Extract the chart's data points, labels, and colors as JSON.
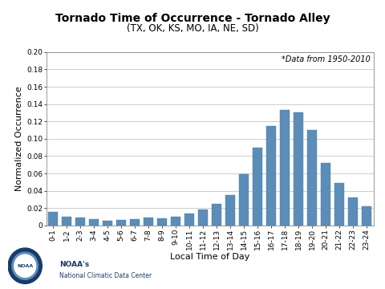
{
  "title": "Tornado Time of Occurrence - Tornado Alley",
  "subtitle": "(TX, OK, KS, MO, IA, NE, SD)",
  "xlabel": "Local Time of Day",
  "ylabel": "Normalized Occurrence",
  "annotation": "*Data from 1950-2010",
  "categories": [
    "0-1",
    "1-2",
    "2-3",
    "3-4",
    "4-5",
    "5-6",
    "6-7",
    "7-8",
    "8-9",
    "9-10",
    "10-11",
    "11-12",
    "12-13",
    "13-14",
    "14-15",
    "15-16",
    "16-17",
    "17-18",
    "18-19",
    "19-20",
    "20-21",
    "21-22",
    "22-23",
    "23-24"
  ],
  "values": [
    0.016,
    0.01,
    0.009,
    0.007,
    0.005,
    0.006,
    0.007,
    0.009,
    0.008,
    0.01,
    0.014,
    0.018,
    0.025,
    0.035,
    0.059,
    0.09,
    0.115,
    0.133,
    0.13,
    0.11,
    0.072,
    0.049,
    0.032,
    0.022
  ],
  "bar_color": "#5b8db8",
  "bar_edge_color": "#4a7da8",
  "ylim": [
    0,
    0.2
  ],
  "yticks": [
    0,
    0.02,
    0.04,
    0.06,
    0.08,
    0.1,
    0.12,
    0.14,
    0.16,
    0.18,
    0.2
  ],
  "title_fontsize": 10,
  "subtitle_fontsize": 8.5,
  "axis_label_fontsize": 8,
  "tick_fontsize": 6.5,
  "annotation_fontsize": 7,
  "background_color": "#ffffff",
  "grid_color": "#bbbbbb",
  "noaa_text_line1": "NOAA's",
  "noaa_text_line2": "National Climatic Data Center",
  "noaa_circle_color": "#1a3a6b",
  "noaa_inner_color": "#5b8db8"
}
